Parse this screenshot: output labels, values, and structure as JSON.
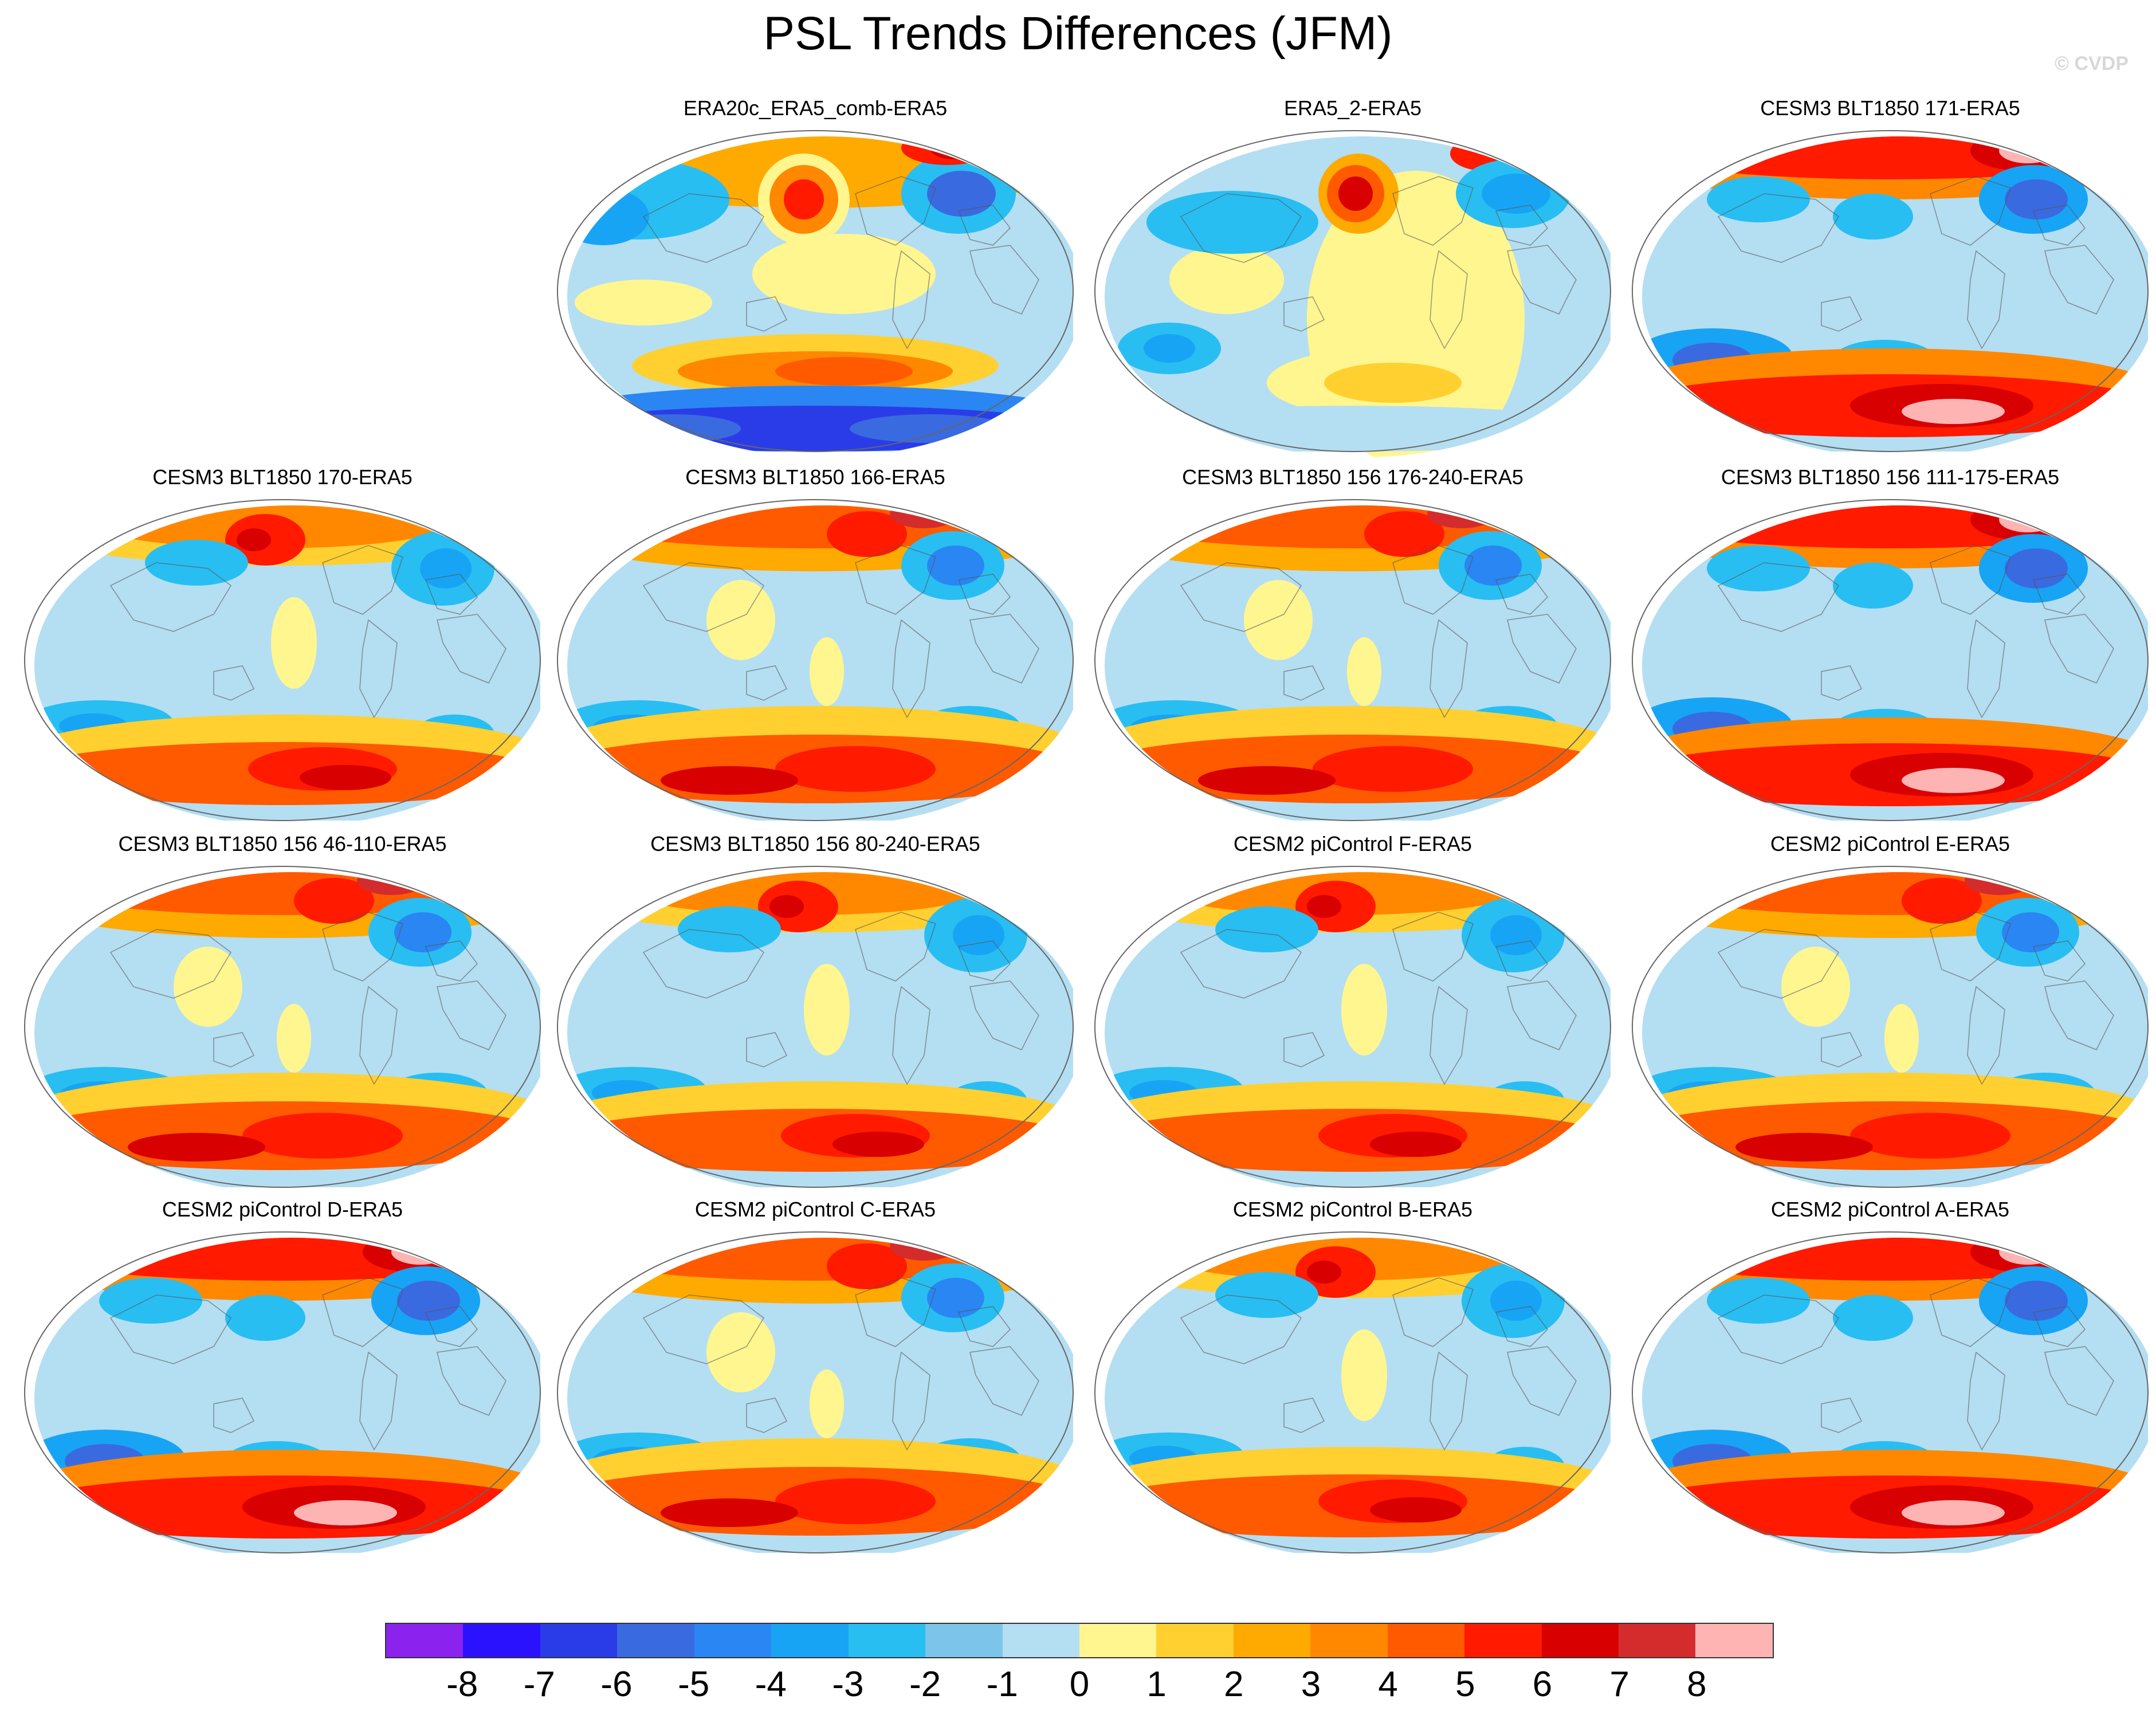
{
  "figure": {
    "title": "PSL Trends Differences (JFM)",
    "credit": "© CVDP"
  },
  "panels": [
    {
      "title": "ERA20c_ERA5_comb-ERA5",
      "pattern": "era20c"
    },
    {
      "title": "ERA5_2-ERA5",
      "pattern": "era5_2"
    },
    {
      "title": "CESM3 BLT1850 171-ERA5",
      "pattern": "model_strong"
    },
    {
      "title": "CESM3 BLT1850 170-ERA5",
      "pattern": "model_b"
    },
    {
      "title": "CESM3 BLT1850 166-ERA5",
      "pattern": "model_a"
    },
    {
      "title": "CESM3 BLT1850 156 176-240-ERA5",
      "pattern": "model_a"
    },
    {
      "title": "CESM3 BLT1850 156 111-175-ERA5",
      "pattern": "model_strong"
    },
    {
      "title": "CESM3 BLT1850 156 46-110-ERA5",
      "pattern": "model_a"
    },
    {
      "title": "CESM3 BLT1850 156 80-240-ERA5",
      "pattern": "model_b"
    },
    {
      "title": "CESM2 piControl F-ERA5",
      "pattern": "model_b"
    },
    {
      "title": "CESM2 piControl E-ERA5",
      "pattern": "model_a"
    },
    {
      "title": "CESM2 piControl D-ERA5",
      "pattern": "model_strong"
    },
    {
      "title": "CESM2 piControl C-ERA5",
      "pattern": "model_a"
    },
    {
      "title": "CESM2 piControl B-ERA5",
      "pattern": "model_b"
    },
    {
      "title": "CESM2 piControl A-ERA5",
      "pattern": "model_strong"
    }
  ],
  "colorbar": {
    "labels": [
      "-8",
      "-7",
      "-6",
      "-5",
      "-4",
      "-3",
      "-2",
      "-1",
      "0",
      "1",
      "2",
      "3",
      "4",
      "5",
      "6",
      "7",
      "8"
    ],
    "colors": [
      "#8b22ee",
      "#2b12ff",
      "#2a3ce8",
      "#3a6ae0",
      "#2a86f2",
      "#18a4f4",
      "#28bef2",
      "#7cc4ea",
      "#b4def2",
      "#fff690",
      "#ffd030",
      "#ffaa00",
      "#ff8800",
      "#ff5a00",
      "#ff1a00",
      "#d80000",
      "#d42c2c",
      "#ffb4b4"
    ]
  }
}
